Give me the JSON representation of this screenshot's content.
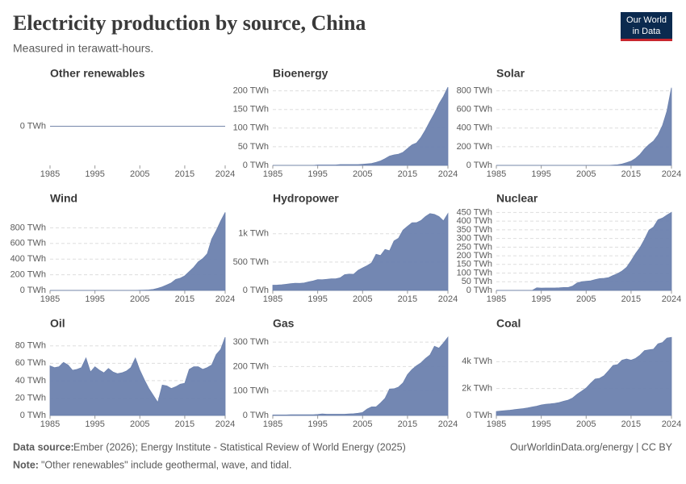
{
  "title": "Electricity production by source, China",
  "subtitle": "Measured in terawatt-hours.",
  "logo": [
    "Our World",
    "in Data"
  ],
  "source_label": "Data source:",
  "source": "Ember (2026); Energy Institute - Statistical Review of World Energy (2025)",
  "note_label": "Note:",
  "note": "\"Other renewables\" include geothermal, wave, and tidal.",
  "url": "OurWorldinData.org/energy | CC BY",
  "chart_data": [
    {
      "type": "area",
      "title": "Other renewables",
      "color": "#6b81ae",
      "grid": true,
      "x": [
        1985,
        1986,
        1987,
        1988,
        1989,
        1990,
        1991,
        1992,
        1993,
        1994,
        1995,
        1996,
        1997,
        1998,
        1999,
        2000,
        2001,
        2002,
        2003,
        2004,
        2005,
        2006,
        2007,
        2008,
        2009,
        2010,
        2011,
        2012,
        2013,
        2014,
        2015,
        2016,
        2017,
        2018,
        2019,
        2020,
        2021,
        2022,
        2023,
        2024
      ],
      "values": [
        0,
        0,
        0,
        0,
        0,
        0,
        0,
        0,
        0,
        0,
        0,
        0,
        0,
        0,
        0,
        0,
        0,
        0,
        0,
        0,
        0,
        0,
        0,
        0,
        0,
        0,
        0,
        0,
        0,
        0,
        0,
        0,
        0,
        0,
        0,
        0,
        0,
        0,
        0,
        0
      ],
      "xlim": [
        1985,
        2024
      ],
      "xticks": [
        1985,
        1995,
        2005,
        2015,
        2024
      ],
      "ylim": [
        -1,
        1
      ],
      "yticks": [
        {
          "value": 0,
          "label": "0 TWh"
        }
      ]
    },
    {
      "type": "area",
      "title": "Bioenergy",
      "color": "#6b81ae",
      "grid": true,
      "x": [
        1985,
        1986,
        1987,
        1988,
        1989,
        1990,
        1991,
        1992,
        1993,
        1994,
        1995,
        1996,
        1997,
        1998,
        1999,
        2000,
        2001,
        2002,
        2003,
        2004,
        2005,
        2006,
        2007,
        2008,
        2009,
        2010,
        2011,
        2012,
        2013,
        2014,
        2015,
        2016,
        2017,
        2018,
        2019,
        2020,
        2021,
        2022,
        2023,
        2024
      ],
      "values": [
        0,
        0,
        0,
        0,
        0,
        0,
        0,
        0,
        0,
        0,
        1,
        1,
        1,
        1,
        1,
        2,
        2,
        2,
        2,
        2,
        3,
        4,
        5,
        8,
        12,
        18,
        25,
        28,
        30,
        35,
        45,
        55,
        60,
        75,
        95,
        118,
        140,
        165,
        185,
        210
      ],
      "xlim": [
        1985,
        2024
      ],
      "xticks": [
        1985,
        1995,
        2005,
        2015,
        2024
      ],
      "ylim": [
        0,
        210
      ],
      "yticks": [
        {
          "value": 0,
          "label": "0 TWh"
        },
        {
          "value": 50,
          "label": "50 TWh"
        },
        {
          "value": 100,
          "label": "100 TWh"
        },
        {
          "value": 150,
          "label": "150 TWh"
        },
        {
          "value": 200,
          "label": "200 TWh"
        }
      ]
    },
    {
      "type": "area",
      "title": "Solar",
      "color": "#6b81ae",
      "grid": true,
      "x": [
        1985,
        1986,
        1987,
        1988,
        1989,
        1990,
        1991,
        1992,
        1993,
        1994,
        1995,
        1996,
        1997,
        1998,
        1999,
        2000,
        2001,
        2002,
        2003,
        2004,
        2005,
        2006,
        2007,
        2008,
        2009,
        2010,
        2011,
        2012,
        2013,
        2014,
        2015,
        2016,
        2017,
        2018,
        2019,
        2020,
        2021,
        2022,
        2023,
        2024
      ],
      "values": [
        0,
        0,
        0,
        0,
        0,
        0,
        0,
        0,
        0,
        0,
        0,
        0,
        0,
        0,
        0,
        0,
        0,
        0,
        0,
        0,
        0,
        0,
        0,
        0,
        0,
        0,
        3,
        6,
        15,
        29,
        45,
        75,
        118,
        177,
        224,
        261,
        327,
        428,
        584,
        834
      ],
      "xlim": [
        1985,
        2024
      ],
      "xticks": [
        1985,
        1995,
        2005,
        2015,
        2024
      ],
      "ylim": [
        0,
        840
      ],
      "yticks": [
        {
          "value": 0,
          "label": "0 TWh"
        },
        {
          "value": 200,
          "label": "200 TWh"
        },
        {
          "value": 400,
          "label": "400 TWh"
        },
        {
          "value": 600,
          "label": "600 TWh"
        },
        {
          "value": 800,
          "label": "800 TWh"
        }
      ]
    },
    {
      "type": "area",
      "title": "Wind",
      "color": "#6b81ae",
      "grid": true,
      "x": [
        1985,
        1986,
        1987,
        1988,
        1989,
        1990,
        1991,
        1992,
        1993,
        1994,
        1995,
        1996,
        1997,
        1998,
        1999,
        2000,
        2001,
        2002,
        2003,
        2004,
        2005,
        2006,
        2007,
        2008,
        2009,
        2010,
        2011,
        2012,
        2013,
        2014,
        2015,
        2016,
        2017,
        2018,
        2019,
        2020,
        2021,
        2022,
        2023,
        2024
      ],
      "values": [
        0,
        0,
        0,
        0,
        0,
        0,
        0,
        0,
        0,
        0,
        0,
        0,
        0,
        0,
        0,
        0,
        0,
        0,
        0,
        0,
        2,
        4,
        6,
        13,
        27,
        45,
        70,
        96,
        141,
        156,
        186,
        241,
        295,
        366,
        406,
        467,
        656,
        763,
        886,
        997
      ],
      "xlim": [
        1985,
        2024
      ],
      "xticks": [
        1985,
        1995,
        2005,
        2015,
        2024
      ],
      "ylim": [
        0,
        1000
      ],
      "yticks": [
        {
          "value": 0,
          "label": "0 TWh"
        },
        {
          "value": 200,
          "label": "200 TWh"
        },
        {
          "value": 400,
          "label": "400 TWh"
        },
        {
          "value": 600,
          "label": "600 TWh"
        },
        {
          "value": 800,
          "label": "800 TWh"
        }
      ]
    },
    {
      "type": "area",
      "title": "Hydropower",
      "color": "#6b81ae",
      "grid": true,
      "x": [
        1985,
        1986,
        1987,
        1988,
        1989,
        1990,
        1991,
        1992,
        1993,
        1994,
        1995,
        1996,
        1997,
        1998,
        1999,
        2000,
        2001,
        2002,
        2003,
        2004,
        2005,
        2006,
        2007,
        2008,
        2009,
        2010,
        2011,
        2012,
        2013,
        2014,
        2015,
        2016,
        2017,
        2018,
        2019,
        2020,
        2021,
        2022,
        2023,
        2024
      ],
      "values": [
        92,
        94,
        100,
        109,
        118,
        126,
        124,
        131,
        151,
        167,
        190,
        188,
        196,
        204,
        204,
        222,
        277,
        288,
        284,
        354,
        397,
        436,
        485,
        637,
        616,
        722,
        699,
        872,
        920,
        1064,
        1130,
        1193,
        1194,
        1232,
        1302,
        1355,
        1340,
        1303,
        1226,
        1354
      ],
      "xlim": [
        1985,
        2024
      ],
      "xticks": [
        1985,
        1995,
        2005,
        2015,
        2024
      ],
      "ylim": [
        0,
        1380
      ],
      "yticks": [
        {
          "value": 0,
          "label": "0 TWh"
        },
        {
          "value": 500,
          "label": "500 TWh"
        },
        {
          "value": 1000,
          "label": "1k TWh"
        }
      ]
    },
    {
      "type": "area",
      "title": "Nuclear",
      "color": "#6b81ae",
      "grid": true,
      "x": [
        1985,
        1986,
        1987,
        1988,
        1989,
        1990,
        1991,
        1992,
        1993,
        1994,
        1995,
        1996,
        1997,
        1998,
        1999,
        2000,
        2001,
        2002,
        2003,
        2004,
        2005,
        2006,
        2007,
        2008,
        2009,
        2010,
        2011,
        2012,
        2013,
        2014,
        2015,
        2016,
        2017,
        2018,
        2019,
        2020,
        2021,
        2022,
        2023,
        2024
      ],
      "values": [
        0,
        0,
        0,
        0,
        0,
        0,
        0,
        0,
        0,
        15,
        13,
        14,
        14,
        14,
        15,
        17,
        17,
        25,
        43,
        50,
        53,
        55,
        62,
        68,
        70,
        74,
        86,
        97,
        112,
        133,
        171,
        213,
        248,
        295,
        348,
        366,
        408,
        418,
        435,
        451
      ],
      "xlim": [
        1985,
        2024
      ],
      "xticks": [
        1985,
        1995,
        2005,
        2015,
        2024
      ],
      "ylim": [
        0,
        452
      ],
      "yticks": [
        {
          "value": 0,
          "label": "0 TWh"
        },
        {
          "value": 50,
          "label": "50 TWh"
        },
        {
          "value": 100,
          "label": "100 TWh"
        },
        {
          "value": 150,
          "label": "150 TWh"
        },
        {
          "value": 200,
          "label": "200 TWh"
        },
        {
          "value": 250,
          "label": "250 TWh"
        },
        {
          "value": 300,
          "label": "300 TWh"
        },
        {
          "value": 350,
          "label": "350 TWh"
        },
        {
          "value": 400,
          "label": "400 TWh"
        },
        {
          "value": 450,
          "label": "450 TWh"
        }
      ]
    },
    {
      "type": "area",
      "title": "Oil",
      "color": "#6b81ae",
      "grid": true,
      "x": [
        1985,
        1986,
        1987,
        1988,
        1989,
        1990,
        1991,
        1992,
        1993,
        1994,
        1995,
        1996,
        1997,
        1998,
        1999,
        2000,
        2001,
        2002,
        2003,
        2004,
        2005,
        2006,
        2007,
        2008,
        2009,
        2010,
        2011,
        2012,
        2013,
        2014,
        2015,
        2016,
        2017,
        2018,
        2019,
        2020,
        2021,
        2022,
        2023,
        2024
      ],
      "values": [
        57,
        55,
        56,
        61,
        58,
        52,
        53,
        55,
        66,
        50,
        56,
        52,
        49,
        54,
        50,
        48,
        49,
        51,
        55,
        66,
        52,
        41,
        31,
        23,
        15,
        35,
        34,
        31,
        33,
        36,
        37,
        53,
        56,
        56,
        53,
        55,
        58,
        70,
        76,
        90
      ],
      "xlim": [
        1985,
        2024
      ],
      "xticks": [
        1985,
        1995,
        2005,
        2015,
        2024
      ],
      "ylim": [
        0,
        90
      ],
      "yticks": [
        {
          "value": 0,
          "label": "0 TWh"
        },
        {
          "value": 20,
          "label": "20 TWh"
        },
        {
          "value": 40,
          "label": "40 TWh"
        },
        {
          "value": 60,
          "label": "60 TWh"
        },
        {
          "value": 80,
          "label": "80 TWh"
        }
      ]
    },
    {
      "type": "area",
      "title": "Gas",
      "color": "#6b81ae",
      "grid": true,
      "x": [
        1985,
        1986,
        1987,
        1988,
        1989,
        1990,
        1991,
        1992,
        1993,
        1994,
        1995,
        1996,
        1997,
        1998,
        1999,
        2000,
        2001,
        2002,
        2003,
        2004,
        2005,
        2006,
        2007,
        2008,
        2009,
        2010,
        2011,
        2012,
        2013,
        2014,
        2015,
        2016,
        2017,
        2018,
        2019,
        2020,
        2021,
        2022,
        2023,
        2024
      ],
      "values": [
        2,
        2,
        2,
        2,
        3,
        3,
        3,
        3,
        3,
        3,
        4,
        6,
        5,
        5,
        5,
        5,
        5,
        6,
        7,
        9,
        12,
        26,
        35,
        35,
        51,
        70,
        108,
        109,
        116,
        133,
        167,
        188,
        203,
        215,
        233,
        247,
        283,
        275,
        296,
        320
      ],
      "xlim": [
        1985,
        2024
      ],
      "xticks": [
        1985,
        1995,
        2005,
        2015,
        2024
      ],
      "ylim": [
        0,
        320
      ],
      "yticks": [
        {
          "value": 0,
          "label": "0 TWh"
        },
        {
          "value": 100,
          "label": "100 TWh"
        },
        {
          "value": 200,
          "label": "200 TWh"
        },
        {
          "value": 300,
          "label": "300 TWh"
        }
      ]
    },
    {
      "type": "area",
      "title": "Coal",
      "color": "#6b81ae",
      "grid": true,
      "x": [
        1985,
        1986,
        1987,
        1988,
        1989,
        1990,
        1991,
        1992,
        1993,
        1994,
        1995,
        1996,
        1997,
        1998,
        1999,
        2000,
        2001,
        2002,
        2003,
        2004,
        2005,
        2006,
        2007,
        2008,
        2009,
        2010,
        2011,
        2012,
        2013,
        2014,
        2015,
        2016,
        2017,
        2018,
        2019,
        2020,
        2021,
        2022,
        2023,
        2024
      ],
      "values": [
        290,
        330,
        360,
        390,
        430,
        470,
        510,
        560,
        630,
        690,
        780,
        830,
        860,
        900,
        960,
        1060,
        1140,
        1300,
        1580,
        1800,
        2040,
        2390,
        2710,
        2760,
        2960,
        3330,
        3720,
        3780,
        4110,
        4200,
        4110,
        4240,
        4480,
        4820,
        4880,
        4930,
        5330,
        5420,
        5750,
        5810
      ],
      "xlim": [
        1985,
        2024
      ],
      "xticks": [
        1985,
        1995,
        2005,
        2015,
        2024
      ],
      "ylim": [
        0,
        5820
      ],
      "yticks": [
        {
          "value": 0,
          "label": "0 TWh"
        },
        {
          "value": 2000,
          "label": "2k TWh"
        },
        {
          "value": 4000,
          "label": "4k TWh"
        }
      ]
    }
  ]
}
